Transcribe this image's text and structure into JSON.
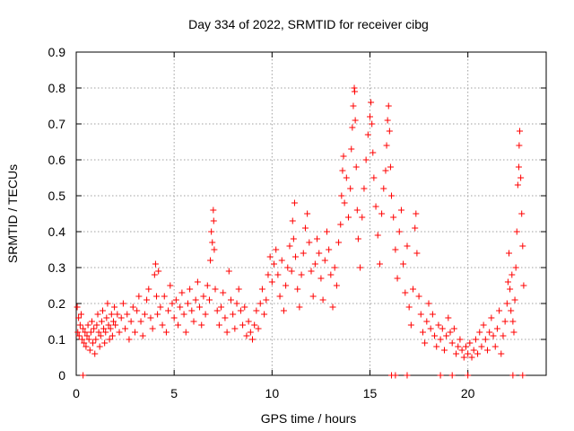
{
  "chart_data": {
    "type": "scatter",
    "title": "Day 334 of 2022, SRMTID for receiver cibg",
    "xlabel": "GPS time / hours",
    "ylabel": "SRMTID / TECUs",
    "xlim": [
      0,
      24
    ],
    "ylim": [
      0,
      0.9
    ],
    "xticks": [
      0,
      5,
      10,
      15,
      20
    ],
    "yticks": [
      0,
      0.1,
      0.2,
      0.3,
      0.4,
      0.5,
      0.6,
      0.7,
      0.8,
      0.9
    ],
    "xtick_labels": [
      "0",
      "5",
      "10",
      "15",
      "20"
    ],
    "ytick_labels": [
      "0",
      "0.1",
      "0.2",
      "0.3",
      "0.4",
      "0.5",
      "0.6",
      "0.7",
      "0.8",
      "0.9"
    ],
    "grid": true,
    "marker": "+",
    "color": "#ff0000",
    "series": [
      {
        "name": "SRMTID",
        "points": [
          [
            0.05,
            0.19
          ],
          [
            0.08,
            0.12
          ],
          [
            0.12,
            0.16
          ],
          [
            0.15,
            0.11
          ],
          [
            0.2,
            0.14
          ],
          [
            0.25,
            0.17
          ],
          [
            0.3,
            0.1
          ],
          [
            0.35,
            0.13
          ],
          [
            0.4,
            0.09
          ],
          [
            0.45,
            0.12
          ],
          [
            0.5,
            0.08
          ],
          [
            0.55,
            0.11
          ],
          [
            0.6,
            0.14
          ],
          [
            0.65,
            0.1
          ],
          [
            0.7,
            0.07
          ],
          [
            0.75,
            0.12
          ],
          [
            0.8,
            0.15
          ],
          [
            0.85,
            0.09
          ],
          [
            0.9,
            0.13
          ],
          [
            0.95,
            0.06
          ],
          [
            1.0,
            0.1
          ],
          [
            1.05,
            0.14
          ],
          [
            1.1,
            0.17
          ],
          [
            1.15,
            0.12
          ],
          [
            1.2,
            0.08
          ],
          [
            1.25,
            0.11
          ],
          [
            1.3,
            0.15
          ],
          [
            1.35,
            0.18
          ],
          [
            1.4,
            0.13
          ],
          [
            1.45,
            0.09
          ],
          [
            1.5,
            0.12
          ],
          [
            1.55,
            0.16
          ],
          [
            1.6,
            0.2
          ],
          [
            1.65,
            0.14
          ],
          [
            1.7,
            0.1
          ],
          [
            1.75,
            0.13
          ],
          [
            1.8,
            0.17
          ],
          [
            1.85,
            0.11
          ],
          [
            1.9,
            0.15
          ],
          [
            1.95,
            0.19
          ],
          [
            2.0,
            0.14
          ],
          [
            2.1,
            0.17
          ],
          [
            2.2,
            0.12
          ],
          [
            2.3,
            0.16
          ],
          [
            2.4,
            0.2
          ],
          [
            2.5,
            0.13
          ],
          [
            2.6,
            0.17
          ],
          [
            2.7,
            0.1
          ],
          [
            2.8,
            0.15
          ],
          [
            2.9,
            0.19
          ],
          [
            3.0,
            0.12
          ],
          [
            3.1,
            0.18
          ],
          [
            3.2,
            0.22
          ],
          [
            3.3,
            0.15
          ],
          [
            3.4,
            0.11
          ],
          [
            3.5,
            0.17
          ],
          [
            3.6,
            0.21
          ],
          [
            3.7,
            0.24
          ],
          [
            3.8,
            0.16
          ],
          [
            3.9,
            0.13
          ],
          [
            4.0,
            0.28
          ],
          [
            4.05,
            0.31
          ],
          [
            4.1,
            0.22
          ],
          [
            4.15,
            0.17
          ],
          [
            4.2,
            0.29
          ],
          [
            4.3,
            0.19
          ],
          [
            4.4,
            0.14
          ],
          [
            4.5,
            0.22
          ],
          [
            4.6,
            0.12
          ],
          [
            4.7,
            0.18
          ],
          [
            4.8,
            0.25
          ],
          [
            4.9,
            0.2
          ],
          [
            5.0,
            0.16
          ],
          [
            5.1,
            0.21
          ],
          [
            5.2,
            0.14
          ],
          [
            5.3,
            0.19
          ],
          [
            5.4,
            0.23
          ],
          [
            5.5,
            0.17
          ],
          [
            5.6,
            0.12
          ],
          [
            5.7,
            0.2
          ],
          [
            5.8,
            0.24
          ],
          [
            5.9,
            0.18
          ],
          [
            6.0,
            0.15
          ],
          [
            6.1,
            0.21
          ],
          [
            6.2,
            0.26
          ],
          [
            6.3,
            0.19
          ],
          [
            6.4,
            0.14
          ],
          [
            6.5,
            0.22
          ],
          [
            6.6,
            0.17
          ],
          [
            6.7,
            0.25
          ],
          [
            6.8,
            0.21
          ],
          [
            6.85,
            0.32
          ],
          [
            6.9,
            0.4
          ],
          [
            6.95,
            0.37
          ],
          [
            7.0,
            0.46
          ],
          [
            7.02,
            0.43
          ],
          [
            7.05,
            0.35
          ],
          [
            7.1,
            0.24
          ],
          [
            7.2,
            0.18
          ],
          [
            7.3,
            0.14
          ],
          [
            7.4,
            0.19
          ],
          [
            7.5,
            0.23
          ],
          [
            7.6,
            0.16
          ],
          [
            7.7,
            0.12
          ],
          [
            7.8,
            0.29
          ],
          [
            7.9,
            0.21
          ],
          [
            8.0,
            0.17
          ],
          [
            8.1,
            0.13
          ],
          [
            8.2,
            0.2
          ],
          [
            8.3,
            0.24
          ],
          [
            8.4,
            0.18
          ],
          [
            8.5,
            0.14
          ],
          [
            8.6,
            0.19
          ],
          [
            8.7,
            0.11
          ],
          [
            8.8,
            0.15
          ],
          [
            8.9,
            0.12
          ],
          [
            9.0,
            0.1
          ],
          [
            9.1,
            0.14
          ],
          [
            9.2,
            0.18
          ],
          [
            9.3,
            0.13
          ],
          [
            9.4,
            0.2
          ],
          [
            9.5,
            0.24
          ],
          [
            9.6,
            0.17
          ],
          [
            9.7,
            0.21
          ],
          [
            9.8,
            0.28
          ],
          [
            9.9,
            0.33
          ],
          [
            10.0,
            0.26
          ],
          [
            10.1,
            0.31
          ],
          [
            10.2,
            0.35
          ],
          [
            10.3,
            0.28
          ],
          [
            10.4,
            0.22
          ],
          [
            10.5,
            0.32
          ],
          [
            10.6,
            0.18
          ],
          [
            10.7,
            0.25
          ],
          [
            10.8,
            0.3
          ],
          [
            10.9,
            0.36
          ],
          [
            11.0,
            0.29
          ],
          [
            11.05,
            0.43
          ],
          [
            11.1,
            0.38
          ],
          [
            11.15,
            0.48
          ],
          [
            11.2,
            0.33
          ],
          [
            11.3,
            0.24
          ],
          [
            11.4,
            0.19
          ],
          [
            11.5,
            0.28
          ],
          [
            11.6,
            0.34
          ],
          [
            11.7,
            0.41
          ],
          [
            11.8,
            0.45
          ],
          [
            11.9,
            0.37
          ],
          [
            12.0,
            0.29
          ],
          [
            12.1,
            0.22
          ],
          [
            12.2,
            0.31
          ],
          [
            12.3,
            0.38
          ],
          [
            12.4,
            0.34
          ],
          [
            12.5,
            0.27
          ],
          [
            12.6,
            0.21
          ],
          [
            12.7,
            0.32
          ],
          [
            12.8,
            0.4
          ],
          [
            12.9,
            0.35
          ],
          [
            13.0,
            0.28
          ],
          [
            13.1,
            0.19
          ],
          [
            13.2,
            0.3
          ],
          [
            13.3,
            0.25
          ],
          [
            13.4,
            0.37
          ],
          [
            13.5,
            0.42
          ],
          [
            13.55,
            0.5
          ],
          [
            13.6,
            0.57
          ],
          [
            13.65,
            0.61
          ],
          [
            13.7,
            0.48
          ],
          [
            13.8,
            0.55
          ],
          [
            13.9,
            0.44
          ],
          [
            14.0,
            0.52
          ],
          [
            14.05,
            0.63
          ],
          [
            14.1,
            0.69
          ],
          [
            14.15,
            0.75
          ],
          [
            14.2,
            0.8
          ],
          [
            14.22,
            0.79
          ],
          [
            14.25,
            0.71
          ],
          [
            14.3,
            0.58
          ],
          [
            14.35,
            0.46
          ],
          [
            14.4,
            0.38
          ],
          [
            14.5,
            0.3
          ],
          [
            14.6,
            0.44
          ],
          [
            14.7,
            0.52
          ],
          [
            14.8,
            0.6
          ],
          [
            14.9,
            0.67
          ],
          [
            15.0,
            0.72
          ],
          [
            15.05,
            0.76
          ],
          [
            15.1,
            0.7
          ],
          [
            15.15,
            0.62
          ],
          [
            15.2,
            0.55
          ],
          [
            15.3,
            0.47
          ],
          [
            15.4,
            0.39
          ],
          [
            15.5,
            0.31
          ],
          [
            15.6,
            0.45
          ],
          [
            15.7,
            0.52
          ],
          [
            15.8,
            0.57
          ],
          [
            15.85,
            0.64
          ],
          [
            15.9,
            0.71
          ],
          [
            15.95,
            0.75
          ],
          [
            16.0,
            0.68
          ],
          [
            16.05,
            0.58
          ],
          [
            16.1,
            0.5
          ],
          [
            16.2,
            0.44
          ],
          [
            16.3,
            0.35
          ],
          [
            16.4,
            0.27
          ],
          [
            16.5,
            0.4
          ],
          [
            16.6,
            0.46
          ],
          [
            16.7,
            0.31
          ],
          [
            16.8,
            0.23
          ],
          [
            16.9,
            0.36
          ],
          [
            17.0,
            0.19
          ],
          [
            17.1,
            0.14
          ],
          [
            17.2,
            0.24
          ],
          [
            17.3,
            0.41
          ],
          [
            17.35,
            0.45
          ],
          [
            17.4,
            0.34
          ],
          [
            17.5,
            0.22
          ],
          [
            17.6,
            0.17
          ],
          [
            17.7,
            0.12
          ],
          [
            17.8,
            0.09
          ],
          [
            17.9,
            0.15
          ],
          [
            18.0,
            0.2
          ],
          [
            18.1,
            0.13
          ],
          [
            18.2,
            0.17
          ],
          [
            18.3,
            0.11
          ],
          [
            18.4,
            0.08
          ],
          [
            18.5,
            0.14
          ],
          [
            18.6,
            0.1
          ],
          [
            18.7,
            0.13
          ],
          [
            18.8,
            0.07
          ],
          [
            18.9,
            0.11
          ],
          [
            19.0,
            0.16
          ],
          [
            19.1,
            0.12
          ],
          [
            19.2,
            0.09
          ],
          [
            19.3,
            0.13
          ],
          [
            19.4,
            0.06
          ],
          [
            19.5,
            0.08
          ],
          [
            19.6,
            0.1
          ],
          [
            19.7,
            0.07
          ],
          [
            19.8,
            0.05
          ],
          [
            19.9,
            0.08
          ],
          [
            20.0,
            0.06
          ],
          [
            20.1,
            0.09
          ],
          [
            20.2,
            0.05
          ],
          [
            20.3,
            0.07
          ],
          [
            20.4,
            0.1
          ],
          [
            20.5,
            0.06
          ],
          [
            20.6,
            0.12
          ],
          [
            20.7,
            0.08
          ],
          [
            20.8,
            0.14
          ],
          [
            20.9,
            0.1
          ],
          [
            21.0,
            0.07
          ],
          [
            21.1,
            0.12
          ],
          [
            21.2,
            0.16
          ],
          [
            21.3,
            0.11
          ],
          [
            21.4,
            0.08
          ],
          [
            21.5,
            0.13
          ],
          [
            21.6,
            0.18
          ],
          [
            21.7,
            0.06
          ],
          [
            21.8,
            0.11
          ],
          [
            21.9,
            0.15
          ],
          [
            22.0,
            0.2
          ],
          [
            22.05,
            0.26
          ],
          [
            22.1,
            0.34
          ],
          [
            22.15,
            0.24
          ],
          [
            22.2,
            0.18
          ],
          [
            22.25,
            0.28
          ],
          [
            22.3,
            0.15
          ],
          [
            22.35,
            0.12
          ],
          [
            22.4,
            0.21
          ],
          [
            22.45,
            0.3
          ],
          [
            22.5,
            0.4
          ],
          [
            22.55,
            0.53
          ],
          [
            22.6,
            0.58
          ],
          [
            22.62,
            0.64
          ],
          [
            22.65,
            0.68
          ],
          [
            22.7,
            0.55
          ],
          [
            22.75,
            0.45
          ],
          [
            22.8,
            0.36
          ],
          [
            22.85,
            0.25
          ],
          [
            0.35,
            0.0
          ],
          [
            16.1,
            0.0
          ],
          [
            16.3,
            0.0
          ],
          [
            16.9,
            0.0
          ],
          [
            18.6,
            0.0
          ],
          [
            19.2,
            0.0
          ],
          [
            20.0,
            0.0
          ],
          [
            22.3,
            0.0
          ],
          [
            22.8,
            0.0
          ]
        ]
      }
    ]
  }
}
